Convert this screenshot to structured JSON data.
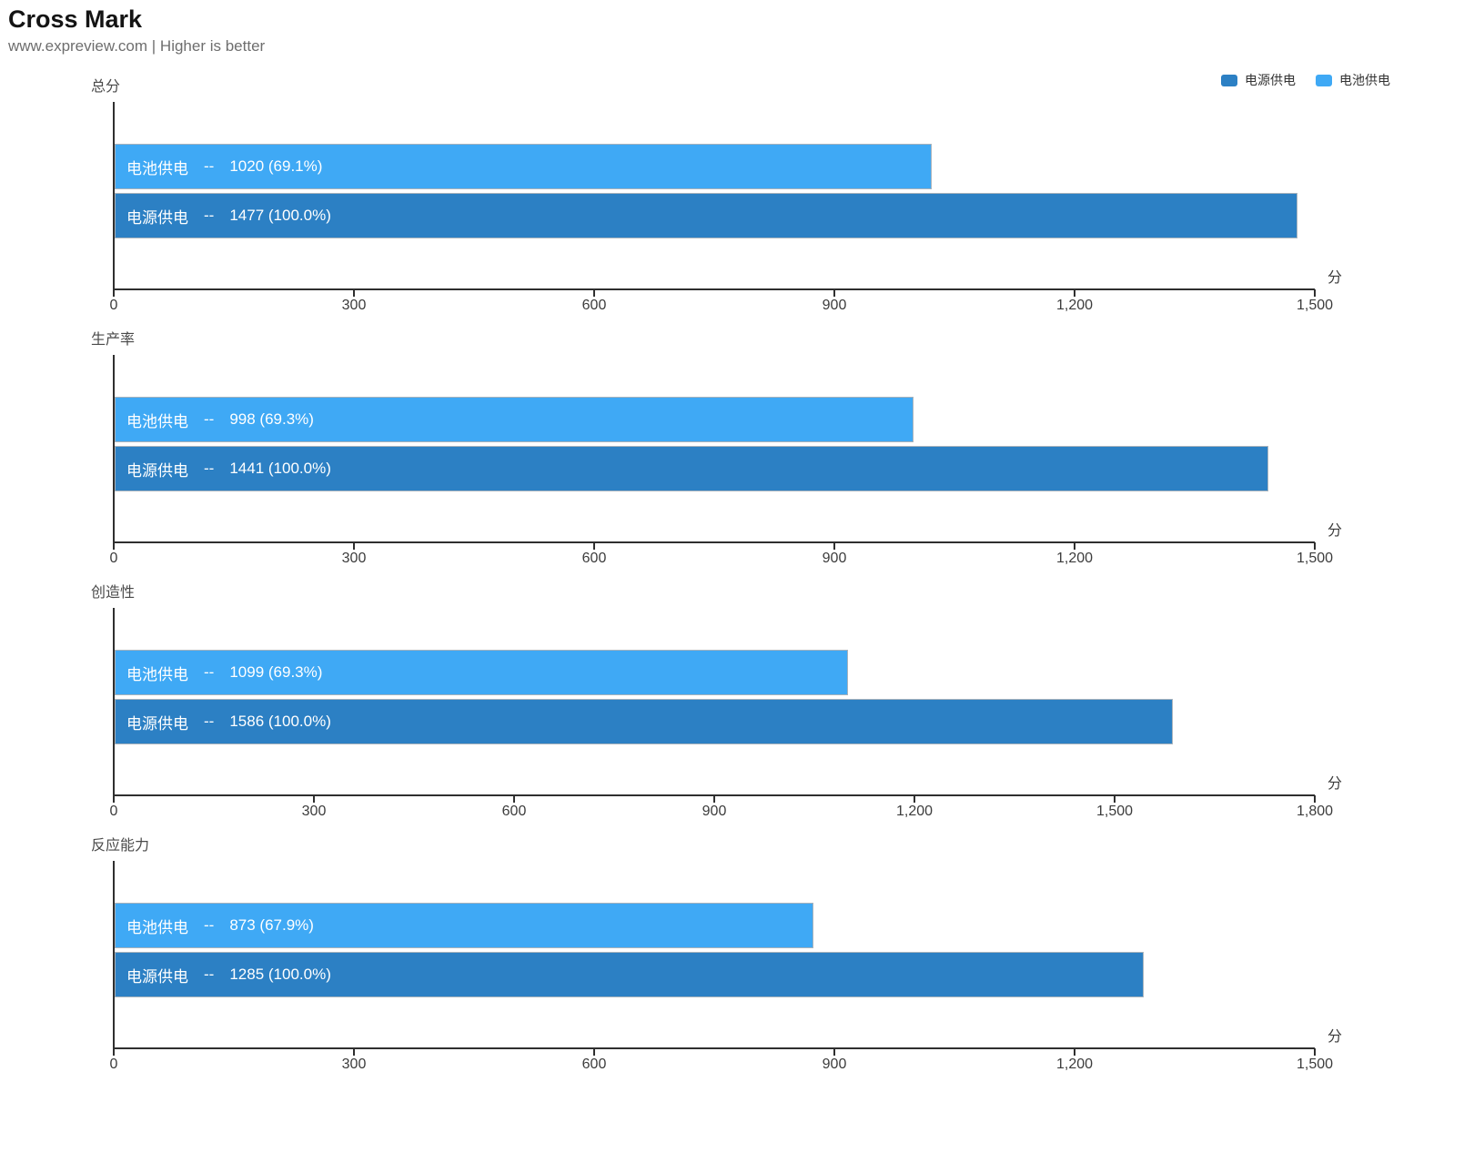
{
  "header": {
    "title": "Cross Mark",
    "subtitle": "www.expreview.com | Higher is better"
  },
  "legend": {
    "items": [
      {
        "key": "power",
        "label": "电源供电",
        "color": "#2C80C4"
      },
      {
        "key": "battery",
        "label": "电池供电",
        "color": "#3FA9F5"
      }
    ]
  },
  "colors": {
    "power_bar": "#2C80C4",
    "battery_bar": "#3FA9F5",
    "axis": "#2f2f2f",
    "bar_border": "#a6b2bc"
  },
  "chart_data": [
    {
      "type": "bar",
      "orientation": "horizontal",
      "title": "总分",
      "unit": "分",
      "xlim": [
        0,
        1500
      ],
      "tick_values": [
        0,
        300,
        600,
        900,
        1200,
        1500
      ],
      "tick_labels": [
        "0",
        "300",
        "600",
        "900",
        "1,200",
        "1,500"
      ],
      "grid": false,
      "bars": [
        {
          "key": "battery",
          "name": "电池供电",
          "dash": "--",
          "value": 1020,
          "percent": "69.1%",
          "display": "1020 (69.1%)",
          "color": "#3FA9F5"
        },
        {
          "key": "power",
          "name": "电源供电",
          "dash": "--",
          "value": 1477,
          "percent": "100.0%",
          "display": "1477 (100.0%)",
          "color": "#2C80C4"
        }
      ]
    },
    {
      "type": "bar",
      "orientation": "horizontal",
      "title": "生产率",
      "unit": "分",
      "xlim": [
        0,
        1500
      ],
      "tick_values": [
        0,
        300,
        600,
        900,
        1200,
        1500
      ],
      "tick_labels": [
        "0",
        "300",
        "600",
        "900",
        "1,200",
        "1,500"
      ],
      "grid": false,
      "bars": [
        {
          "key": "battery",
          "name": "电池供电",
          "dash": "--",
          "value": 998,
          "percent": "69.3%",
          "display": "998 (69.3%)",
          "color": "#3FA9F5"
        },
        {
          "key": "power",
          "name": "电源供电",
          "dash": "--",
          "value": 1441,
          "percent": "100.0%",
          "display": "1441 (100.0%)",
          "color": "#2C80C4"
        }
      ]
    },
    {
      "type": "bar",
      "orientation": "horizontal",
      "title": "创造性",
      "unit": "分",
      "xlim": [
        0,
        1800
      ],
      "tick_values": [
        0,
        300,
        600,
        900,
        1200,
        1500,
        1800
      ],
      "tick_labels": [
        "0",
        "300",
        "600",
        "900",
        "1,200",
        "1,500",
        "1,800"
      ],
      "grid": false,
      "bars": [
        {
          "key": "battery",
          "name": "电池供电",
          "dash": "--",
          "value": 1099,
          "percent": "69.3%",
          "display": "1099 (69.3%)",
          "color": "#3FA9F5"
        },
        {
          "key": "power",
          "name": "电源供电",
          "dash": "--",
          "value": 1586,
          "percent": "100.0%",
          "display": "1586 (100.0%)",
          "color": "#2C80C4"
        }
      ]
    },
    {
      "type": "bar",
      "orientation": "horizontal",
      "title": "反应能力",
      "unit": "分",
      "xlim": [
        0,
        1500
      ],
      "tick_values": [
        0,
        300,
        600,
        900,
        1200,
        1500
      ],
      "tick_labels": [
        "0",
        "300",
        "600",
        "900",
        "1,200",
        "1,500"
      ],
      "grid": false,
      "bars": [
        {
          "key": "battery",
          "name": "电池供电",
          "dash": "--",
          "value": 873,
          "percent": "67.9%",
          "display": "873 (67.9%)",
          "color": "#3FA9F5"
        },
        {
          "key": "power",
          "name": "电源供电",
          "dash": "--",
          "value": 1285,
          "percent": "100.0%",
          "display": "1285 (100.0%)",
          "color": "#2C80C4"
        }
      ]
    }
  ]
}
